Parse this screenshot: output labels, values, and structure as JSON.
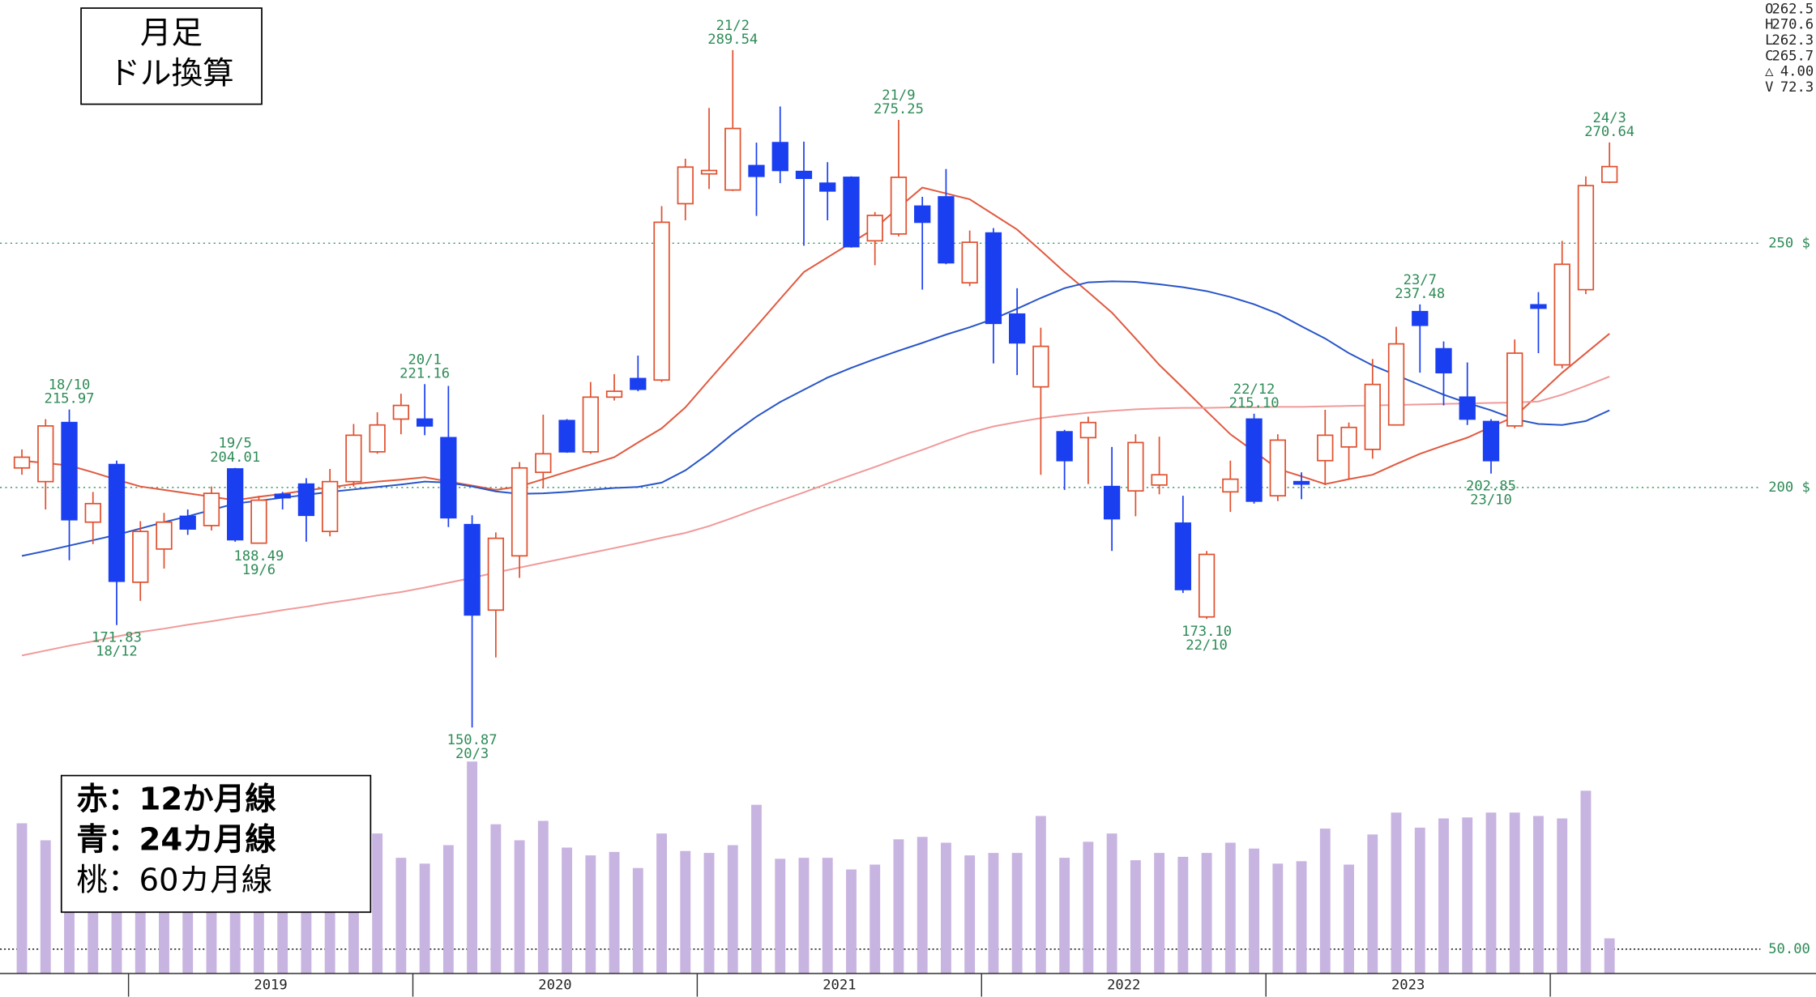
{
  "chart_data": {
    "type": "candlestick",
    "title": "月足",
    "subtitle": "ドル換算",
    "x": [
      2018.625,
      2018.7083,
      2018.7917,
      2018.875,
      2018.9583,
      2019.0417,
      2019.125,
      2019.2083,
      2019.2917,
      2019.375,
      2019.4583,
      2019.5417,
      2019.625,
      2019.7083,
      2019.7917,
      2019.875,
      2019.9583,
      2020.0417,
      2020.125,
      2020.2083,
      2020.2917,
      2020.375,
      2020.4583,
      2020.5417,
      2020.625,
      2020.7083,
      2020.7917,
      2020.875,
      2020.9583,
      2021.0417,
      2021.125,
      2021.2083,
      2021.2917,
      2021.375,
      2021.4583,
      2021.5417,
      2021.625,
      2021.7083,
      2021.7917,
      2021.875,
      2021.9583,
      2022.0417,
      2022.125,
      2022.2083,
      2022.2917,
      2022.375,
      2022.4583,
      2022.5417,
      2022.625,
      2022.7083,
      2022.7917,
      2022.875,
      2022.9583,
      2023.0417,
      2023.125,
      2023.2083,
      2023.2917,
      2023.375,
      2023.4583,
      2023.5417,
      2023.625,
      2023.7083,
      2023.7917,
      2023.875,
      2023.9583,
      2024.0417,
      2024.125,
      2024.2083
    ],
    "open": [
      204.0,
      201.2,
      213.3,
      192.9,
      204.7,
      180.6,
      187.4,
      194.1,
      192.2,
      203.8,
      188.6,
      198.6,
      200.7,
      191.0,
      201.2,
      207.3,
      214.0,
      214.0,
      210.2,
      192.4,
      174.9,
      186.0,
      203.1,
      213.7,
      207.3,
      218.5,
      222.3,
      222.0,
      258.1,
      264.2,
      260.9,
      265.9,
      270.6,
      264.7,
      262.3,
      263.5,
      250.5,
      251.9,
      257.6,
      259.5,
      241.9,
      252.1,
      235.5,
      220.6,
      211.4,
      210.2,
      200.2,
      199.3,
      200.5,
      192.7,
      173.5,
      199.1,
      214.0,
      198.3,
      201.2,
      205.5,
      208.3,
      207.8,
      212.8,
      236.0,
      228.4,
      218.5,
      213.5,
      212.6,
      237.4,
      225.1,
      240.5,
      262.5
    ],
    "high": [
      207.8,
      214.0,
      215.97,
      199.1,
      205.5,
      193.1,
      194.8,
      195.5,
      200.2,
      204.01,
      198.3,
      199.1,
      201.9,
      203.8,
      213.0,
      215.4,
      219.2,
      221.16,
      220.8,
      194.3,
      190.8,
      205.2,
      214.9,
      214.0,
      221.6,
      223.2,
      227.0,
      257.6,
      267.3,
      277.7,
      289.54,
      270.6,
      278.0,
      270.8,
      266.6,
      263.7,
      256.4,
      275.25,
      259.5,
      265.2,
      252.6,
      253.1,
      240.8,
      232.7,
      211.8,
      214.5,
      208.3,
      210.9,
      210.4,
      198.3,
      187.0,
      205.5,
      215.1,
      210.9,
      203.1,
      215.9,
      213.3,
      226.3,
      232.9,
      237.48,
      229.9,
      225.6,
      214.0,
      230.3,
      240.0,
      250.5,
      263.7,
      270.64
    ],
    "low": [
      202.6,
      195.5,
      185.1,
      188.4,
      171.83,
      176.8,
      183.4,
      190.3,
      191.2,
      188.9,
      188.49,
      195.5,
      188.9,
      190.0,
      200.2,
      206.9,
      210.9,
      210.7,
      191.9,
      150.87,
      165.2,
      181.5,
      199.8,
      207.1,
      206.9,
      217.8,
      219.7,
      221.6,
      254.7,
      261.1,
      260.7,
      255.6,
      262.3,
      249.5,
      254.7,
      249.1,
      245.5,
      251.4,
      240.5,
      245.7,
      241.2,
      225.4,
      223.0,
      202.6,
      199.5,
      200.7,
      187.0,
      194.1,
      198.6,
      178.4,
      173.1,
      195.0,
      196.7,
      197.2,
      197.6,
      200.5,
      201.7,
      205.9,
      213.0,
      223.5,
      216.8,
      212.8,
      202.85,
      212.1,
      227.5,
      224.4,
      239.6,
      262.3
    ],
    "close": [
      206.2,
      212.6,
      193.4,
      196.7,
      180.8,
      191.0,
      192.9,
      191.5,
      198.8,
      189.3,
      197.4,
      197.9,
      194.3,
      201.2,
      210.7,
      212.8,
      216.8,
      212.6,
      193.8,
      173.9,
      189.6,
      204.0,
      206.9,
      207.3,
      218.5,
      219.7,
      220.1,
      254.3,
      265.6,
      264.9,
      273.5,
      263.7,
      264.9,
      263.3,
      260.7,
      249.3,
      255.7,
      263.5,
      254.3,
      246.0,
      250.2,
      233.6,
      229.6,
      228.9,
      205.5,
      213.3,
      193.6,
      209.2,
      202.6,
      179.1,
      186.3,
      201.7,
      197.2,
      209.7,
      200.7,
      210.7,
      212.3,
      221.1,
      229.4,
      233.2,
      223.5,
      214.0,
      205.5,
      227.5,
      236.7,
      245.7,
      261.8,
      265.7
    ],
    "up_color": "#e0502e",
    "down_color": "#1a3ff0",
    "series": [
      {
        "name": "赤：12か月線",
        "color": "#e05a40",
        "legend_bold": true,
        "values": [
          205.5,
          205.0,
          204.5,
          203.1,
          201.6,
          200.2,
          199.5,
          198.8,
          198.1,
          197.4,
          198.1,
          198.7,
          199.4,
          200.0,
          200.7,
          201.2,
          201.6,
          202.1,
          201.2,
          200.4,
          199.5,
          200.2,
          201.7,
          203.2,
          204.7,
          206.2,
          209.2,
          212.1,
          216.4,
          222.0,
          227.5,
          233.0,
          238.6,
          244.1,
          247.1,
          250.1,
          253.1,
          257.3,
          261.4,
          260.2,
          259.0,
          255.9,
          252.8,
          248.5,
          244.1,
          240.0,
          235.8,
          230.5,
          225.1,
          220.4,
          215.6,
          210.9,
          207.4,
          203.8,
          202.3,
          200.7,
          201.7,
          202.6,
          204.8,
          206.9,
          208.6,
          210.2,
          212.4,
          214.5,
          219.0,
          223.5,
          227.5,
          231.5
        ]
      },
      {
        "name": "青：24カ月線",
        "color": "#2855c8",
        "legend_bold": true,
        "values": [
          186.0,
          187.0,
          188.1,
          189.2,
          190.3,
          191.6,
          192.9,
          194.1,
          195.4,
          196.7,
          197.3,
          197.9,
          198.5,
          199.1,
          199.6,
          200.1,
          200.6,
          201.2,
          201.0,
          200.2,
          199.2,
          198.7,
          198.8,
          199.1,
          199.5,
          199.9,
          200.1,
          201.0,
          203.5,
          207.0,
          211.0,
          214.5,
          217.5,
          220.0,
          222.5,
          224.5,
          226.3,
          228.0,
          229.6,
          231.3,
          232.8,
          234.5,
          236.6,
          238.8,
          240.8,
          242.0,
          242.2,
          242.1,
          241.6,
          241.0,
          240.2,
          239.0,
          237.5,
          235.6,
          233.0,
          230.5,
          227.5,
          225.0,
          223.0,
          221.0,
          219.0,
          217.3,
          215.8,
          214.0,
          213.0,
          212.8,
          213.6,
          215.8
        ]
      },
      {
        "name": "桃：60カ月線",
        "color": "#f09a9a",
        "legend_bold": false,
        "values": [
          165.6,
          166.6,
          167.6,
          168.5,
          169.5,
          170.4,
          171.1,
          171.9,
          172.6,
          173.4,
          174.1,
          174.9,
          175.6,
          176.4,
          177.1,
          177.9,
          178.6,
          179.5,
          180.5,
          181.5,
          182.6,
          183.6,
          184.6,
          185.6,
          186.6,
          187.6,
          188.6,
          189.7,
          190.7,
          192.1,
          193.8,
          195.6,
          197.3,
          199.0,
          200.8,
          202.5,
          204.2,
          206.0,
          207.7,
          209.5,
          211.2,
          212.5,
          213.4,
          214.2,
          214.8,
          215.3,
          215.7,
          216.0,
          216.2,
          216.3,
          216.3,
          216.4,
          216.4,
          216.5,
          216.5,
          216.6,
          216.7,
          216.8,
          216.9,
          217.0,
          217.1,
          217.2,
          217.3,
          217.4,
          217.6,
          219.0,
          220.8,
          222.7
        ]
      }
    ],
    "volume": {
      "color": "#c8b4e0",
      "ylim": [
        0,
        450
      ],
      "yticks": [
        {
          "value": 50,
          "label": "50.00"
        }
      ],
      "values": [
        309,
        274,
        309,
        274,
        309,
        250,
        264,
        262,
        252,
        274,
        264,
        257,
        252,
        255,
        264,
        288,
        238,
        226,
        264,
        436,
        307,
        274,
        314,
        259,
        243,
        250,
        217,
        288,
        252,
        248,
        264,
        347,
        236,
        238,
        238,
        214,
        224,
        276,
        281,
        269,
        243,
        248,
        248,
        324,
        238,
        271,
        288,
        233,
        248,
        240,
        248,
        269,
        257,
        226,
        231,
        298,
        224,
        286,
        331,
        300,
        319,
        321,
        331,
        331,
        324,
        319,
        376,
        72.3
      ]
    },
    "xlim": [
      2018.548,
      2024.739
    ],
    "xticks": [
      2019,
      2020,
      2021,
      2022,
      2023,
      2024
    ],
    "year_labels": [
      "2019",
      "2020",
      "2021",
      "2022",
      "2023"
    ],
    "ylim": [
      100.5,
      299.8
    ],
    "yticks": [
      {
        "value": 200,
        "label": "200 $"
      },
      {
        "value": 250,
        "label": "250 $"
      }
    ],
    "grid": true,
    "annotations": [
      {
        "date": "18/10",
        "value": 215.97
      },
      {
        "date": "18/12",
        "value": 171.83
      },
      {
        "date": "19/5",
        "value": 204.01
      },
      {
        "date": "19/6",
        "value": 188.49
      },
      {
        "date": "20/1",
        "value": 221.16
      },
      {
        "date": "20/3",
        "value": 150.87
      },
      {
        "date": "21/2",
        "value": 289.54
      },
      {
        "date": "21/9",
        "value": 275.25
      },
      {
        "date": "22/10",
        "value": 173.1,
        "label": "173.10"
      },
      {
        "date": "22/12",
        "value": 215.1,
        "label": "215.10"
      },
      {
        "date": "23/7",
        "value": 237.48
      },
      {
        "date": "23/10",
        "value": 202.85
      },
      {
        "date": "24/3",
        "value": 270.64
      }
    ],
    "info_panel": [
      {
        "key": "O",
        "value": 262.5
      },
      {
        "key": "H",
        "value": 270.6
      },
      {
        "key": "L",
        "value": 262.3
      },
      {
        "key": "C",
        "value": 265.7
      },
      {
        "key": "△",
        "value": 4,
        "label": "4.00",
        "color": "#e0302e"
      },
      {
        "key": "V",
        "value": 72.3
      }
    ]
  }
}
